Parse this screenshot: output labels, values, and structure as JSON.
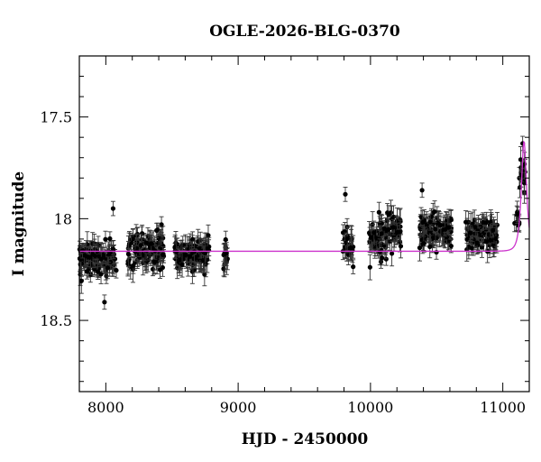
{
  "chart_data": {
    "type": "scatter",
    "title": "OGLE-2026-BLG-0370",
    "xlabel": "HJD - 2450000",
    "ylabel": "I magnitude",
    "xlim": [
      7800,
      11200
    ],
    "ylim": [
      18.85,
      17.2
    ],
    "y_inverted": true,
    "x_ticks": [
      8000,
      9000,
      10000,
      11000
    ],
    "x_tick_labels": [
      "8000",
      "9000",
      "10000",
      "11000"
    ],
    "y_ticks": [
      17.5,
      18,
      18.5
    ],
    "y_tick_labels": [
      "17.5",
      "18",
      "18.5"
    ],
    "grid": false,
    "legend": "none",
    "series": [
      {
        "type": "scatter_errorbar",
        "color": "#000000",
        "seasons": [
          {
            "x_range": [
              7800,
              8080
            ],
            "mag_center": 18.19,
            "mag_scatter": 0.07,
            "n_points": 110
          },
          {
            "x_range": [
              8160,
              8440
            ],
            "mag_center": 18.15,
            "mag_scatter": 0.07,
            "n_points": 110
          },
          {
            "x_range": [
              8520,
              8780
            ],
            "mag_center": 18.18,
            "mag_scatter": 0.07,
            "n_points": 105
          },
          {
            "x_range": [
              8890,
              8920
            ],
            "mag_center": 18.19,
            "mag_scatter": 0.06,
            "n_points": 14
          },
          {
            "x_range": [
              9790,
              9880
            ],
            "mag_center": 18.12,
            "mag_scatter": 0.08,
            "n_points": 25
          },
          {
            "x_range": [
              9980,
              10130
            ],
            "mag_center": 18.1,
            "mag_scatter": 0.08,
            "n_points": 55
          },
          {
            "x_range": [
              10130,
              10230
            ],
            "mag_center": 18.05,
            "mag_scatter": 0.07,
            "n_points": 40
          },
          {
            "x_range": [
              10370,
              10620
            ],
            "mag_center": 18.06,
            "mag_scatter": 0.07,
            "n_points": 95
          },
          {
            "x_range": [
              10720,
              10960
            ],
            "mag_center": 18.08,
            "mag_scatter": 0.07,
            "n_points": 95
          },
          {
            "x_range": [
              11080,
              11125
            ],
            "mag_center": 18.02,
            "mag_scatter": 0.05,
            "n_points": 10
          },
          {
            "x_range": [
              11125,
              11175
            ],
            "mag_center": 17.78,
            "mag_scatter": 0.08,
            "n_points": 18
          }
        ],
        "outliers": [
          {
            "x": 7990,
            "y": 18.41
          },
          {
            "x": 8055,
            "y": 17.95
          },
          {
            "x": 9810,
            "y": 17.88
          },
          {
            "x": 10390,
            "y": 17.86
          },
          {
            "x": 11150,
            "y": 17.63
          }
        ]
      },
      {
        "type": "model_curve",
        "color": "#cc33cc",
        "baseline_mag": 18.16,
        "peak_x": 11160,
        "peak_mag": 17.62,
        "t_E": 28,
        "x_range": [
          7800,
          11200
        ]
      }
    ]
  }
}
